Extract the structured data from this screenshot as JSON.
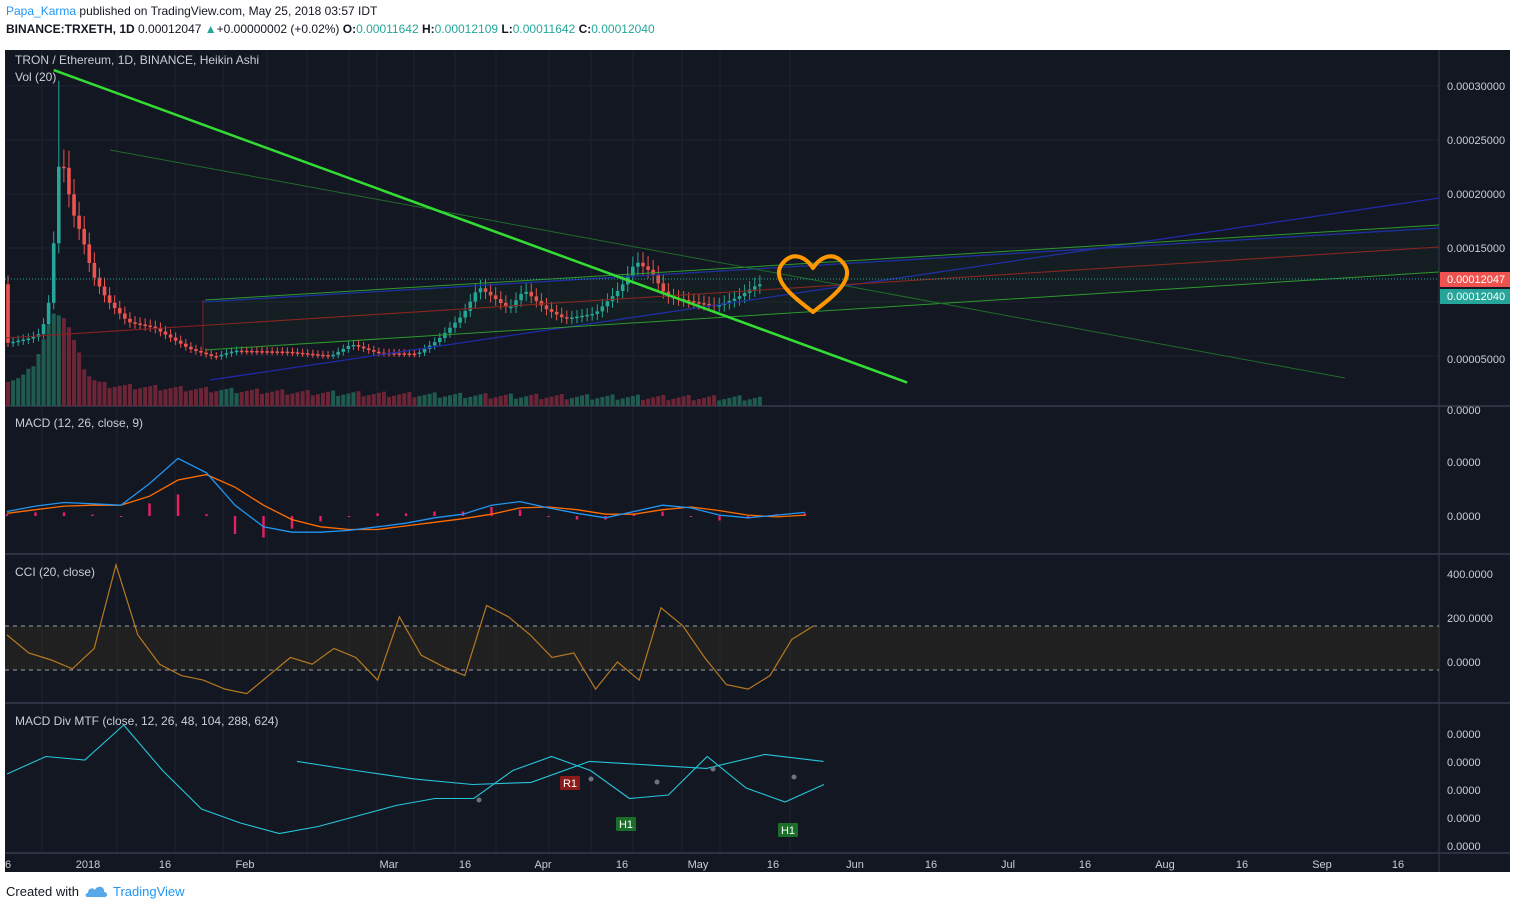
{
  "header": {
    "author": "Papa_Karma",
    "published_text": "published on TradingView.com, May 25, 2018 03:57 IDT",
    "symbol": "BINANCE:TRXETH, 1D",
    "last_price": "0.00012047",
    "change": "+0.00000002 (+0.02%)",
    "open_label": "O:",
    "open": "0.00011642",
    "high_label": "H:",
    "high": "0.00012109",
    "low_label": "L:",
    "low": "0.00011642",
    "close_label": "C:",
    "close": "0.00012040"
  },
  "footer": {
    "created_with": "Created with",
    "brand": "TradingView"
  },
  "colors": {
    "background": "#131722",
    "up": "#26a69a",
    "down": "#ef5350",
    "trendline": "#33dd33",
    "channel_blue": "#1f2aa8",
    "channel_green": "#2e9a2e",
    "channel_red": "#8c2020",
    "heart": "#ff9800",
    "macd": "#2196f3",
    "signal": "#ff6d00",
    "histogram": "#e91e63",
    "cci": "#b7791f",
    "mtf": "#26c6da"
  },
  "chart_data": [
    {
      "type": "candlestick",
      "title": "TRON / Ethereum, 1D, BINANCE, Heikin Ashi",
      "volume_label": "Vol (20)",
      "x_tick_labels": [
        "6",
        "2018",
        "16",
        "Feb",
        "Mar",
        "16",
        "Apr",
        "16",
        "May",
        "16",
        "Jun",
        "16",
        "Jul",
        "16",
        "Aug",
        "16",
        "Sep",
        "16"
      ],
      "y_tick_labels": [
        "0.00030000",
        "0.00025000",
        "0.00020000",
        "0.00015000",
        "0.00005000"
      ],
      "ylim": [
        2e-05,
        0.00032
      ],
      "price_labels": [
        "0.00012047",
        "0.00012040"
      ],
      "period": [
        "2017-12-27",
        "2018-05-24"
      ],
      "close_path": [
        [
          "2017-12-27",
          6.5e-05
        ],
        [
          "2018-01-01",
          7e-05
        ],
        [
          "2018-01-03",
          7.5e-05
        ],
        [
          "2018-01-05",
          0.000115
        ],
        [
          "2018-01-06",
          0.000225
        ],
        [
          "2018-01-07",
          0.00024
        ],
        [
          "2018-01-09",
          0.00019
        ],
        [
          "2018-01-11",
          0.000165
        ],
        [
          "2018-01-13",
          0.00013
        ],
        [
          "2018-01-16",
          0.000105
        ],
        [
          "2018-01-20",
          8.5e-05
        ],
        [
          "2018-01-25",
          8e-05
        ],
        [
          "2018-02-01",
          6e-05
        ],
        [
          "2018-02-06",
          5.2e-05
        ],
        [
          "2018-02-10",
          5.8e-05
        ],
        [
          "2018-02-20",
          5.7e-05
        ],
        [
          "2018-03-01",
          5.3e-05
        ],
        [
          "2018-03-05",
          6.4e-05
        ],
        [
          "2018-03-10",
          5.6e-05
        ],
        [
          "2018-03-18",
          5.5e-05
        ],
        [
          "2018-03-22",
          6.8e-05
        ],
        [
          "2018-03-27",
          9.2e-05
        ],
        [
          "2018-03-30",
          0.000118
        ],
        [
          "2018-04-02",
          0.000108
        ],
        [
          "2018-04-05",
          9.7e-05
        ],
        [
          "2018-04-08",
          0.000115
        ],
        [
          "2018-04-12",
          9.8e-05
        ],
        [
          "2018-04-16",
          8.8e-05
        ],
        [
          "2018-04-22",
          9.3e-05
        ],
        [
          "2018-04-27",
          0.000117
        ],
        [
          "2018-04-30",
          0.000142
        ],
        [
          "2018-05-03",
          0.000132
        ],
        [
          "2018-05-06",
          0.000109
        ],
        [
          "2018-05-12",
          0.000103
        ],
        [
          "2018-05-16",
          0.0001
        ],
        [
          "2018-05-20",
          0.000108
        ],
        [
          "2018-05-24",
          0.0001204
        ]
      ],
      "trendline": [
        [
          "2018-01-05",
          0.000322
        ],
        [
          "2018-06-22",
          2.8e-05
        ]
      ],
      "annotation": "heart"
    },
    {
      "type": "line",
      "title": "MACD (12, 26, close, 9)",
      "series": [
        {
          "values": [
            0.25,
            0.55,
            0.75,
            0.68,
            0.6,
            1.8,
            3.2,
            2.4,
            0.6,
            -0.6,
            -0.9,
            -0.9,
            -0.8,
            -0.6,
            -0.4,
            -0.1,
            0.1,
            0.6,
            0.8,
            0.45,
            0.15,
            -0.1,
            0.25,
            0.6,
            0.45,
            0.05,
            -0.1,
            0.05,
            0.2
          ]
        },
        {
          "values": [
            0.15,
            0.35,
            0.55,
            0.6,
            0.6,
            1.1,
            2.0,
            2.3,
            1.6,
            0.6,
            -0.2,
            -0.6,
            -0.75,
            -0.75,
            -0.55,
            -0.35,
            -0.15,
            0.1,
            0.45,
            0.5,
            0.35,
            0.1,
            0.1,
            0.35,
            0.5,
            0.3,
            0.05,
            -0.05,
            0.05
          ]
        },
        {
          "values": [
            0.1,
            0.2,
            0.2,
            0.08,
            0,
            0.7,
            1.2,
            0.1,
            -1.0,
            -1.2,
            -0.7,
            -0.3,
            -0.05,
            0.15,
            0.15,
            0.25,
            0.25,
            0.5,
            0.35,
            -0.05,
            -0.2,
            -0.2,
            0.15,
            0.25,
            -0.05,
            -0.25,
            -0.15,
            0.1,
            0.15
          ]
        }
      ],
      "y_tick_labels": [
        "0.0000",
        "0.0000",
        "0.0000"
      ]
    },
    {
      "type": "line",
      "title": "CCI (20, close)",
      "series": [
        {
          "values": [
            120,
            40,
            10,
            -30,
            60,
            430,
            120,
            -10,
            -60,
            -80,
            -120,
            -140,
            -60,
            20,
            -10,
            60,
            20,
            -80,
            200,
            30,
            -20,
            -60,
            250,
            200,
            120,
            20,
            40,
            -120,
            0,
            -80,
            240,
            160,
            20,
            -100,
            -120,
            -60,
            100,
            160
          ]
        }
      ],
      "bands": [
        150,
        -30
      ],
      "y_tick_labels": [
        "400.0000",
        "200.0000",
        "0.0000"
      ]
    },
    {
      "type": "line",
      "title": "MACD Div MTF (close, 12, 26, 48, 104, 288, 624)",
      "series": [
        {
          "values": [
            0.3,
            0.55,
            0.5,
            1.0,
            0.35,
            -0.2,
            -0.4,
            -0.55,
            -0.45,
            -0.3,
            -0.15,
            -0.05,
            -0.05,
            0.35,
            0.55,
            0.35,
            -0.05,
            0.0,
            0.55,
            0.1,
            -0.1,
            0.15
          ]
        },
        {
          "values": [
            0.48,
            0.35,
            0.23,
            0.15,
            0.18,
            0.48,
            0.43,
            0.38,
            0.58,
            0.48
          ]
        }
      ],
      "point_labels": [
        "R1",
        "H1",
        "H1"
      ],
      "y_tick_labels": [
        "0.0000",
        "0.0000",
        "0.0000",
        "0.0000",
        "0.0000",
        "-0.0000"
      ]
    }
  ]
}
